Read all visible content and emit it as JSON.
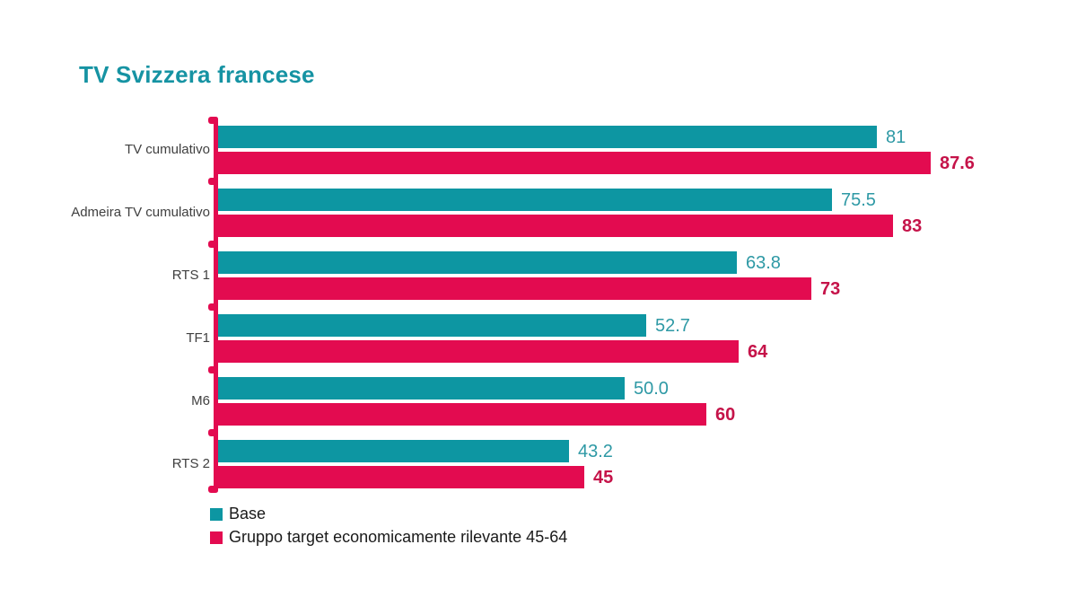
{
  "title": "TV Svizzera francese",
  "colors": {
    "title": "#1693A3",
    "base_bar": "#0D96A2",
    "target_bar": "#E30B50",
    "base_value_text": "#2E99A5",
    "target_value_text": "#C51349",
    "axis": "#E30B50"
  },
  "legend": {
    "items": [
      {
        "label": "Base",
        "color": "#0D96A2"
      },
      {
        "label": "Gruppo target economicamente rilevante 45-64",
        "color": "#E30B50"
      }
    ]
  },
  "chart_data": {
    "type": "bar",
    "orientation": "horizontal",
    "title": "TV Svizzera francese",
    "categories": [
      "TV cumulativo",
      "Admeira TV cumulativo",
      "RTS 1",
      "TF1",
      "M6",
      "RTS 2"
    ],
    "series": [
      {
        "name": "Base",
        "values": [
          81,
          75.5,
          63.8,
          52.7,
          50.0,
          43.2
        ],
        "value_labels": [
          "81",
          "75.5",
          "63.8",
          "52.7",
          "50.0",
          "43.2"
        ]
      },
      {
        "name": "Gruppo target economicamente rilevante 45-64",
        "values": [
          87.6,
          83,
          73,
          64,
          60,
          45
        ],
        "value_labels": [
          "87.6",
          "83",
          "73",
          "64",
          "60",
          "45"
        ]
      }
    ],
    "xlabel": "",
    "ylabel": "",
    "xlim": [
      0,
      100
    ],
    "grid": false,
    "legend_position": "bottom-left",
    "value_labels_shown": true
  }
}
